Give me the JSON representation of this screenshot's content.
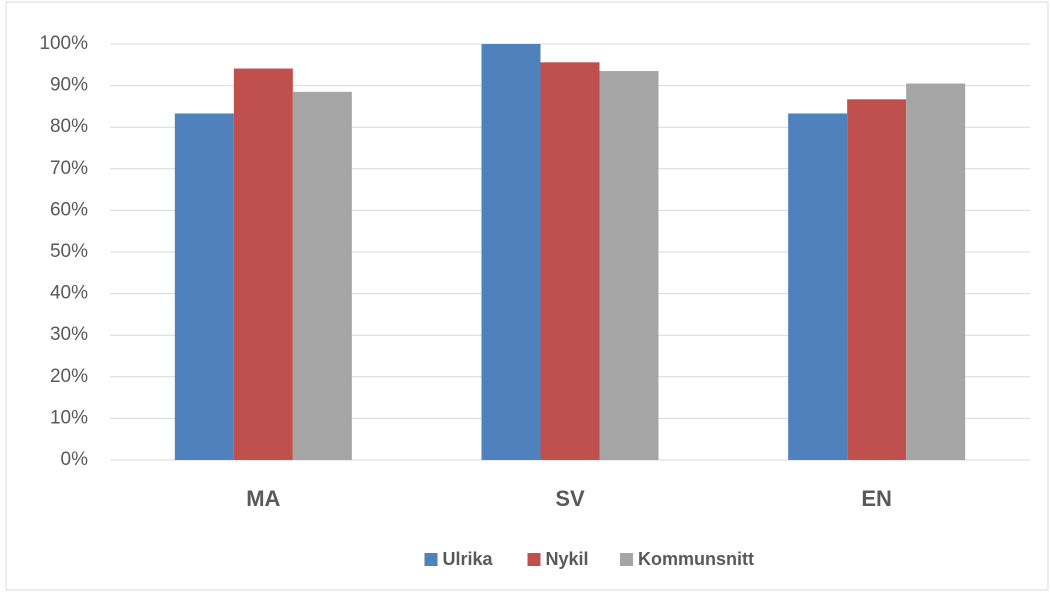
{
  "chart_data": {
    "type": "bar",
    "categories": [
      "MA",
      "SV",
      "EN"
    ],
    "series": [
      {
        "name": "Ulrika",
        "color": "#4f81bd",
        "values": [
          83.3,
          100,
          83.3
        ]
      },
      {
        "name": "Nykil",
        "color": "#c0504d",
        "values": [
          94.1,
          95.6,
          86.7
        ]
      },
      {
        "name": "Kommunsnitt",
        "color": "#a5a5a5",
        "values": [
          88.5,
          93.5,
          90.5
        ]
      }
    ],
    "ylim": [
      0,
      100
    ],
    "yticks": [
      {
        "value": 0,
        "label": "0%"
      },
      {
        "value": 10,
        "label": "10%"
      },
      {
        "value": 20,
        "label": "20%"
      },
      {
        "value": 30,
        "label": "30%"
      },
      {
        "value": 40,
        "label": "40%"
      },
      {
        "value": 50,
        "label": "50%"
      },
      {
        "value": 60,
        "label": "60%"
      },
      {
        "value": 70,
        "label": "70%"
      },
      {
        "value": 80,
        "label": "80%"
      },
      {
        "value": 90,
        "label": "90%"
      },
      {
        "value": 100,
        "label": "100%"
      }
    ],
    "grid": true,
    "legend": "bottom"
  }
}
